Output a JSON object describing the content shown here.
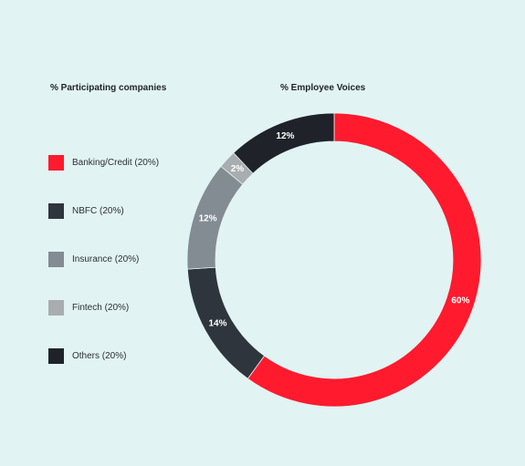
{
  "panels": {
    "left_title": "% Participating companies",
    "right_title": "% Employee Voices"
  },
  "legend": [
    {
      "label": "Banking/Credit (20%)",
      "color": "#ff1a2e"
    },
    {
      "label": "NBFC (20%)",
      "color": "#2f353d"
    },
    {
      "label": "Insurance (20%)",
      "color": "#838b93"
    },
    {
      "label": "Fintech (20%)",
      "color": "#a9adb0"
    },
    {
      "label": "Others (20%)",
      "color": "#1f2329"
    }
  ],
  "chart_data": {
    "type": "pie",
    "title": "% Employee Voices",
    "donut": true,
    "slices": [
      {
        "label": "60%",
        "value": 60,
        "color": "#ff1a2e"
      },
      {
        "label": "14%",
        "value": 14,
        "color": "#2f353d"
      },
      {
        "label": "12%",
        "value": 12,
        "color": "#838b93"
      },
      {
        "label": "2%",
        "value": 2,
        "color": "#a9adb0"
      },
      {
        "label": "12%",
        "value": 12,
        "color": "#1f2329"
      }
    ]
  }
}
